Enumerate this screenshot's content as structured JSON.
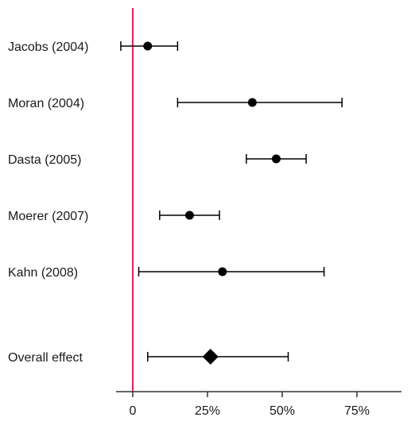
{
  "chart_data": {
    "type": "forest",
    "title": "",
    "xlabel": "",
    "ylabel": "",
    "xlim": [
      -0.05,
      0.93
    ],
    "x_ticks": [
      0,
      0.25,
      0.5,
      0.75
    ],
    "x_tick_labels": [
      "0",
      "25%",
      "50%",
      "75%"
    ],
    "reference_line": {
      "x": 0,
      "color": "#e0245e"
    },
    "studies": [
      {
        "label": "Jacobs (2004)",
        "estimate": 0.05,
        "lower": -0.04,
        "upper": 0.15
      },
      {
        "label": "Moran (2004)",
        "estimate": 0.4,
        "lower": 0.15,
        "upper": 0.7
      },
      {
        "label": "Dasta (2005)",
        "estimate": 0.48,
        "lower": 0.38,
        "upper": 0.58
      },
      {
        "label": "Moerer (2007)",
        "estimate": 0.19,
        "lower": 0.09,
        "upper": 0.29
      },
      {
        "label": "Kahn (2008)",
        "estimate": 0.3,
        "lower": 0.02,
        "upper": 0.64
      }
    ],
    "overall": {
      "label": "Overall effect",
      "estimate": 0.26,
      "lower": 0.05,
      "upper": 0.52
    },
    "colors": {
      "marker": "#000000",
      "axis": "#333333"
    }
  }
}
